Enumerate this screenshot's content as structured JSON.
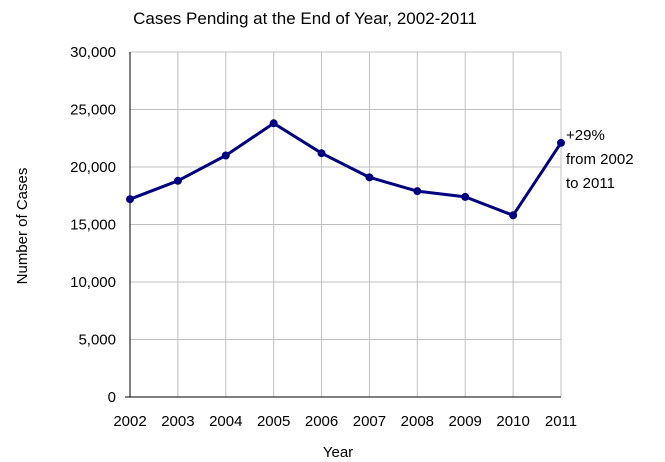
{
  "chart_data": {
    "type": "line",
    "title": "Cases Pending at the End of Year, 2002-2011",
    "xlabel": "Year",
    "ylabel": "Number of Cases",
    "categories": [
      "2002",
      "2003",
      "2004",
      "2005",
      "2006",
      "2007",
      "2008",
      "2009",
      "2010",
      "2011"
    ],
    "values": [
      17200,
      18800,
      21000,
      23800,
      21200,
      19100,
      17900,
      17400,
      15800,
      22100
    ],
    "yticks": [
      "0",
      "5,000",
      "10,000",
      "15,000",
      "20,000",
      "25,000",
      "30,000"
    ],
    "ylim": [
      0,
      30000
    ],
    "grid": true,
    "legend": "none",
    "annotation": [
      "+29%",
      "from 2002",
      "to 2011"
    ],
    "colors": {
      "line": "#000080",
      "grid": "#c0c0c0",
      "axis": "#000000"
    }
  }
}
